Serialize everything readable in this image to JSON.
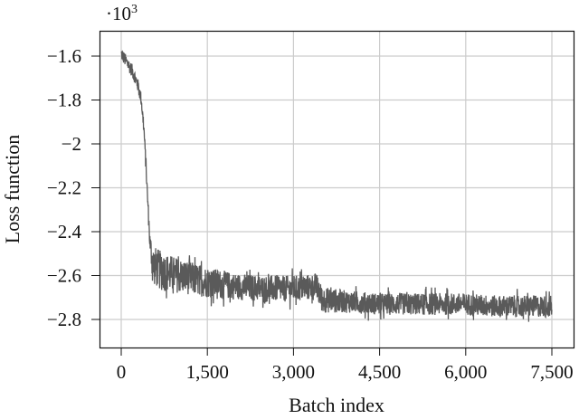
{
  "chart_data": {
    "type": "line",
    "title": "",
    "xlabel": "Batch index",
    "ylabel": "Loss function",
    "y_scale_label": "·10",
    "y_scale_exp": "3",
    "xlim": [
      -350,
      7850
    ],
    "ylim": [
      -2.93,
      -1.49
    ],
    "x_ticks": [
      0,
      1500,
      3000,
      4500,
      6000,
      7500
    ],
    "x_tick_labels": [
      "0",
      "1,500",
      "3,000",
      "4,500",
      "6,000",
      "7,500"
    ],
    "y_ticks": [
      -1.6,
      -1.8,
      -2.0,
      -2.2,
      -2.4,
      -2.6,
      -2.8
    ],
    "y_tick_labels": [
      "−1.6",
      "−1.8",
      "−2",
      "−2.2",
      "−2.4",
      "−2.6",
      "−2.8"
    ],
    "grid": true,
    "legend": null,
    "line_color": "#5a5a5a",
    "series": [
      {
        "name": "Loss",
        "x": [
          0,
          100,
          200,
          300,
          350,
          400,
          450,
          500,
          550,
          700,
          1000,
          1500,
          2000,
          2500,
          3000,
          3400,
          3500,
          4000,
          4500,
          5000,
          5500,
          6000,
          6500,
          7000,
          7500
        ],
        "values": [
          -1.59,
          -1.63,
          -1.67,
          -1.74,
          -1.8,
          -1.95,
          -2.2,
          -2.45,
          -2.55,
          -2.58,
          -2.6,
          -2.63,
          -2.65,
          -2.66,
          -2.66,
          -2.65,
          -2.71,
          -2.72,
          -2.73,
          -2.73,
          -2.73,
          -2.73,
          -2.74,
          -2.74,
          -2.74
        ],
        "noise_amplitude": [
          0.03,
          0.03,
          0.03,
          0.03,
          0.03,
          0.03,
          0.03,
          0.05,
          0.09,
          0.09,
          0.08,
          0.07,
          0.06,
          0.06,
          0.06,
          0.06,
          0.06,
          0.05,
          0.05,
          0.05,
          0.05,
          0.05,
          0.05,
          0.05,
          0.05
        ]
      }
    ]
  }
}
